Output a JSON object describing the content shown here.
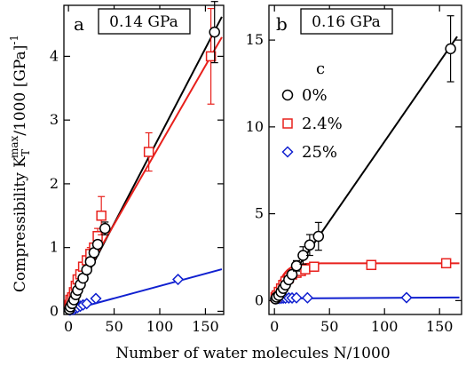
{
  "chart_data": [
    {
      "panel": "a",
      "type": "scatter",
      "title": "0.14 GPa",
      "xlabel": "Number of water molecules N/1000",
      "ylabel": "Compressibility K_T^max/1000 [GPa]^-1",
      "ylabel_parts": {
        "main": "Compressibility K",
        "sub": "T",
        "sup": "max",
        "rest": "/1000 [GPa]",
        "exp": "-1"
      },
      "xlim": [
        -5,
        170
      ],
      "ylim": [
        -0.05,
        4.8
      ],
      "xticks": [
        0,
        50,
        100,
        150
      ],
      "yticks": [
        0,
        1,
        2,
        3,
        4
      ],
      "grid": false,
      "series": [
        {
          "name": "0%",
          "color": "#000000",
          "marker": "circle",
          "x": [
            1,
            2,
            4,
            6,
            8,
            10,
            13,
            16,
            20,
            24,
            28,
            32,
            40,
            160
          ],
          "y": [
            0.03,
            0.07,
            0.12,
            0.18,
            0.26,
            0.33,
            0.42,
            0.52,
            0.65,
            0.78,
            0.92,
            1.05,
            1.3,
            4.38
          ],
          "yerr": [
            0,
            0,
            0,
            0,
            0,
            0,
            0,
            0,
            0,
            0,
            0,
            0,
            0.1,
            0.48
          ],
          "fit": [
            [
              0,
              0
            ],
            [
              168,
              4.62
            ]
          ]
        },
        {
          "name": "2.4%",
          "color": "#e8201c",
          "marker": "square",
          "x": [
            1,
            2,
            4,
            6,
            8,
            10,
            13,
            16,
            20,
            24,
            28,
            32,
            36,
            88,
            156
          ],
          "y": [
            0.1,
            0.18,
            0.22,
            0.3,
            0.4,
            0.5,
            0.58,
            0.7,
            0.8,
            0.9,
            1.0,
            1.18,
            1.5,
            2.5,
            4.0
          ],
          "yerr": [
            0,
            0,
            0,
            0,
            0,
            0,
            0,
            0,
            0,
            0.1,
            0,
            0.12,
            0.3,
            0.3,
            0.75
          ],
          "fit": [
            [
              0,
              0.12
            ],
            [
              168,
              4.3
            ]
          ]
        },
        {
          "name": "25%",
          "color": "#1020d0",
          "marker": "diamond",
          "x": [
            1,
            2,
            4,
            6,
            8,
            10,
            13,
            16,
            20,
            30,
            120
          ],
          "y": [
            0.02,
            0.02,
            0.03,
            0.03,
            0.05,
            0.06,
            0.08,
            0.1,
            0.12,
            0.2,
            0.5
          ],
          "yerr": [
            0,
            0,
            0,
            0,
            0,
            0,
            0,
            0,
            0,
            0,
            0
          ],
          "fit": [
            [
              0,
              0.01
            ],
            [
              168,
              0.66
            ]
          ]
        }
      ]
    },
    {
      "panel": "b",
      "type": "scatter",
      "title": "0.16 GPa",
      "xlabel": "Number of water molecules N/1000",
      "xlim": [
        -5,
        170
      ],
      "ylim": [
        -0.8,
        17
      ],
      "xticks": [
        0,
        50,
        100,
        150
      ],
      "yticks": [
        0,
        5,
        10,
        15
      ],
      "grid": false,
      "legend": {
        "placement": "upper-left",
        "title": "c",
        "entries": [
          "0%",
          "2.4%",
          "25%"
        ]
      },
      "series": [
        {
          "name": "0%",
          "color": "#000000",
          "marker": "circle",
          "x": [
            1,
            2,
            4,
            6,
            8,
            10,
            13,
            16,
            20,
            26,
            32,
            40,
            160
          ],
          "y": [
            0.1,
            0.2,
            0.3,
            0.5,
            0.7,
            0.9,
            1.2,
            1.5,
            2.0,
            2.6,
            3.2,
            3.7,
            14.5
          ],
          "yerr": [
            0,
            0,
            0,
            0,
            0,
            0,
            0,
            0,
            0.3,
            0.5,
            0.6,
            0.8,
            1.9
          ],
          "fit": [
            [
              0,
              0
            ],
            [
              166,
              15.2
            ]
          ]
        },
        {
          "name": "2.4%",
          "color": "#e8201c",
          "marker": "square",
          "x": [
            1,
            2,
            4,
            6,
            8,
            10,
            13,
            16,
            20,
            24,
            28,
            36,
            88,
            156
          ],
          "y": [
            0.2,
            0.3,
            0.5,
            0.7,
            0.9,
            1.1,
            1.3,
            1.5,
            1.6,
            1.7,
            1.8,
            1.95,
            2.05,
            2.15
          ],
          "yerr": [
            0,
            0,
            0,
            0,
            0,
            0,
            0,
            0,
            0,
            0,
            0,
            0,
            0,
            0
          ],
          "fit_curve": {
            "a": 2.15,
            "tau": 7,
            "xmax": 168
          }
        },
        {
          "name": "25%",
          "color": "#1020d0",
          "marker": "diamond",
          "x": [
            1,
            2,
            4,
            6,
            8,
            10,
            13,
            16,
            20,
            30,
            120
          ],
          "y": [
            0.1,
            0.12,
            0.12,
            0.13,
            0.14,
            0.14,
            0.15,
            0.15,
            0.16,
            0.16,
            0.17
          ],
          "yerr": [
            0,
            0,
            0,
            0,
            0,
            0,
            0,
            0,
            0,
            0,
            0
          ],
          "fit": [
            [
              0,
              0.12
            ],
            [
              168,
              0.18
            ]
          ]
        }
      ]
    }
  ]
}
